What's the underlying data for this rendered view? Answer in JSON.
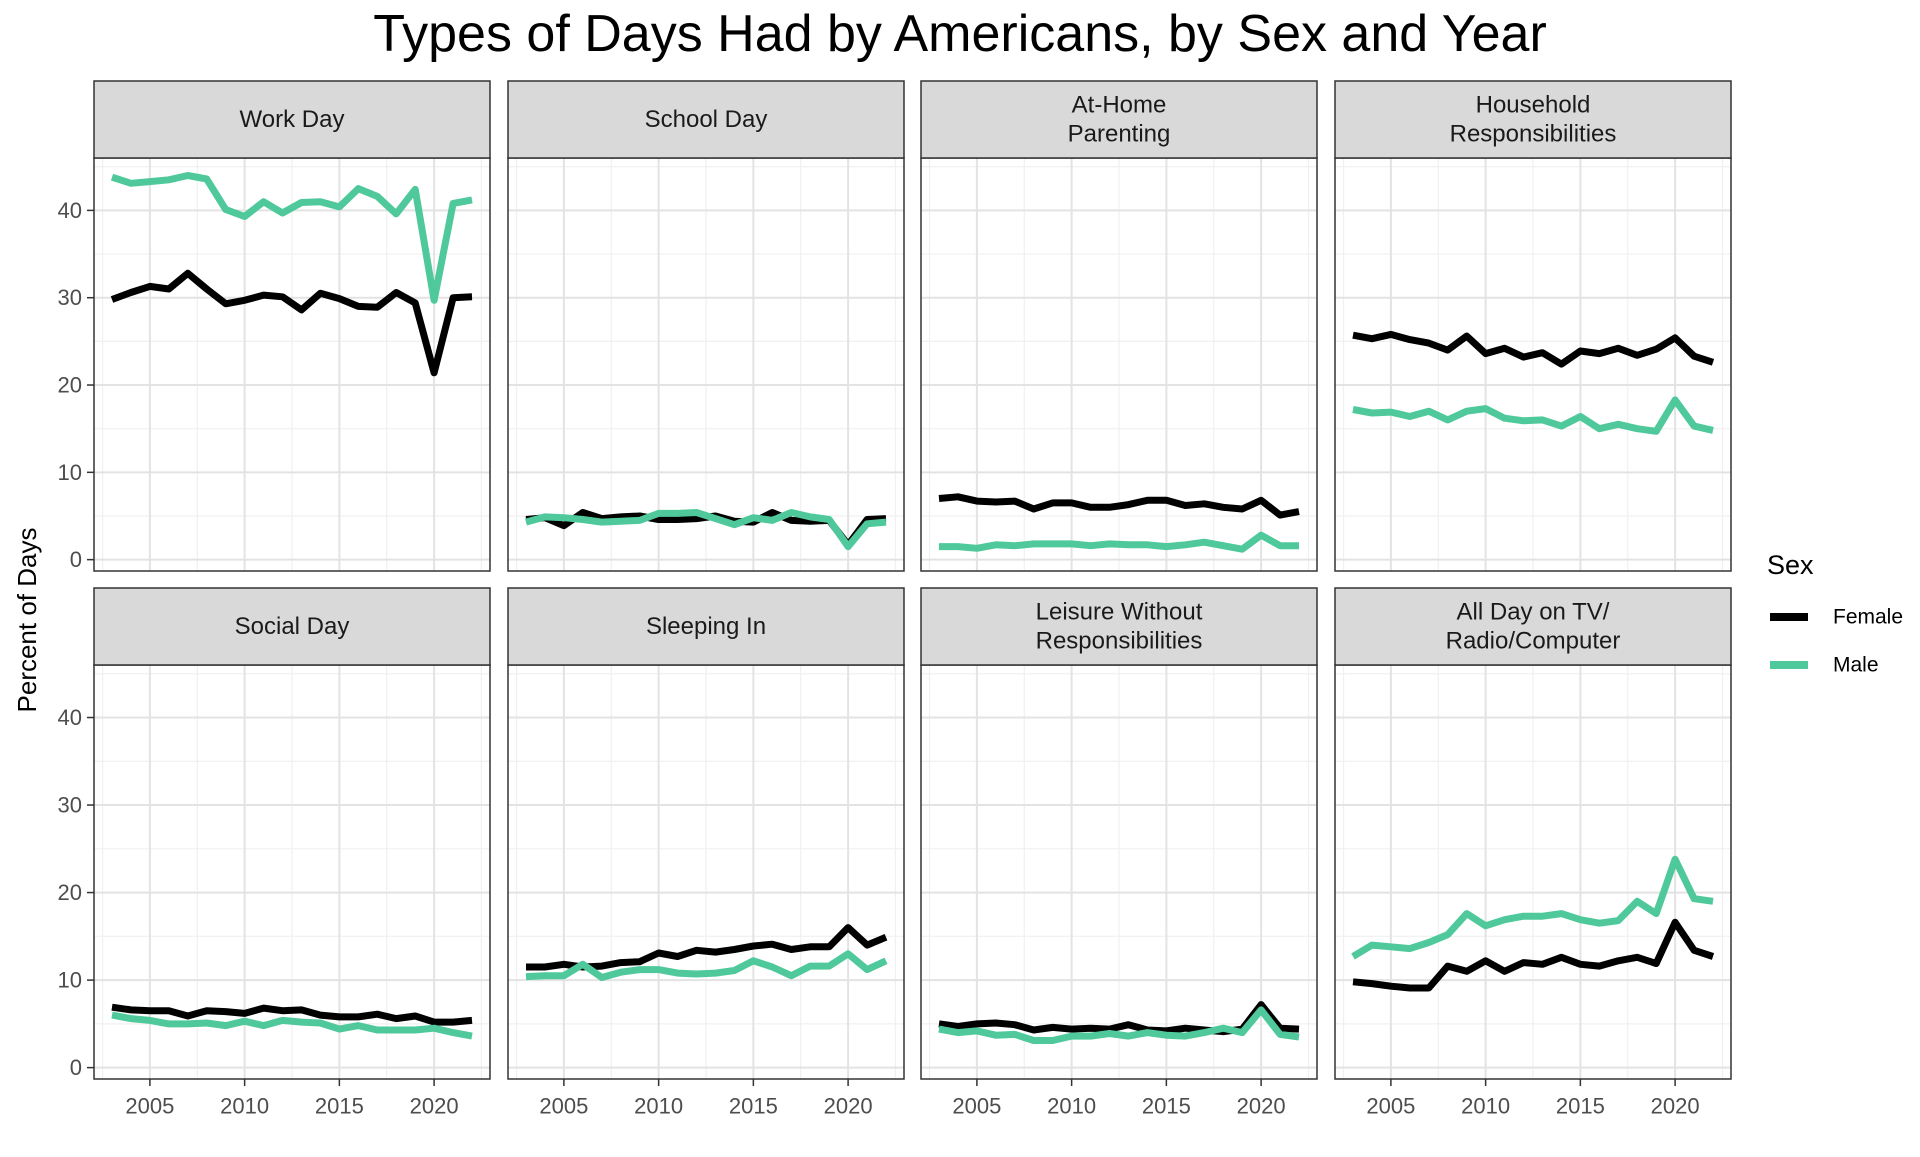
{
  "chart_data": {
    "type": "line",
    "title": "Types of Days Had by Americans, by Sex and Year",
    "ylabel": "Percent of Days",
    "xlabel": "",
    "xlim": [
      2002.05,
      2022.95
    ],
    "ylim": [
      -1.3,
      46.0
    ],
    "x_ticks": [
      2005,
      2010,
      2015,
      2020
    ],
    "x_tick_labels": [
      "2005",
      "2010",
      "2015",
      "2020"
    ],
    "y_ticks": [
      0,
      10,
      20,
      30,
      40
    ],
    "y_tick_labels": [
      "0",
      "10",
      "20",
      "30",
      "40"
    ],
    "grid": true,
    "legend": {
      "title": "Sex",
      "position": "right",
      "items": [
        {
          "name": "Female",
          "color": "#000000"
        },
        {
          "name": "Male",
          "color": "#4fc99c"
        }
      ]
    },
    "x": [
      2003,
      2004,
      2005,
      2006,
      2007,
      2008,
      2009,
      2010,
      2011,
      2012,
      2013,
      2014,
      2015,
      2016,
      2017,
      2018,
      2019,
      2020,
      2021,
      2022
    ],
    "panels": [
      {
        "label_lines": [
          "Work Day"
        ],
        "series": [
          {
            "name": "Female",
            "values": [
              29.8,
              30.6,
              31.3,
              31.0,
              32.8,
              31.0,
              29.3,
              29.7,
              30.3,
              30.1,
              28.6,
              30.5,
              29.9,
              29.0,
              28.9,
              30.6,
              29.4,
              21.4,
              30.0,
              30.1
            ]
          },
          {
            "name": "Male",
            "values": [
              43.8,
              43.1,
              43.3,
              43.5,
              44.0,
              43.6,
              40.1,
              39.3,
              41.0,
              39.7,
              40.9,
              41.0,
              40.4,
              42.5,
              41.6,
              39.6,
              42.4,
              29.7,
              40.8,
              41.2
            ]
          }
        ]
      },
      {
        "label_lines": [
          "School Day"
        ],
        "series": [
          {
            "name": "Female",
            "values": [
              4.6,
              4.8,
              3.9,
              5.4,
              4.7,
              4.9,
              5.0,
              4.6,
              4.6,
              4.7,
              5.0,
              4.4,
              4.3,
              5.4,
              4.5,
              4.4,
              4.5,
              1.7,
              4.6,
              4.7
            ]
          },
          {
            "name": "Male",
            "values": [
              4.3,
              4.9,
              4.8,
              4.6,
              4.3,
              4.4,
              4.5,
              5.3,
              5.3,
              5.4,
              4.7,
              4.0,
              4.8,
              4.5,
              5.4,
              4.9,
              4.6,
              1.5,
              4.1,
              4.3
            ]
          }
        ]
      },
      {
        "label_lines": [
          "At-Home",
          "Parenting"
        ],
        "series": [
          {
            "name": "Female",
            "values": [
              7.0,
              7.2,
              6.7,
              6.6,
              6.7,
              5.8,
              6.5,
              6.5,
              6.0,
              6.0,
              6.3,
              6.8,
              6.8,
              6.2,
              6.4,
              6.0,
              5.8,
              6.8,
              5.1,
              5.5
            ]
          },
          {
            "name": "Male",
            "values": [
              1.5,
              1.5,
              1.3,
              1.7,
              1.6,
              1.8,
              1.8,
              1.8,
              1.6,
              1.8,
              1.7,
              1.7,
              1.5,
              1.7,
              2.0,
              1.6,
              1.2,
              2.8,
              1.6,
              1.6
            ]
          }
        ]
      },
      {
        "label_lines": [
          "Household",
          "Responsibilities"
        ],
        "series": [
          {
            "name": "Female",
            "values": [
              25.7,
              25.3,
              25.8,
              25.2,
              24.8,
              24.0,
              25.6,
              23.6,
              24.2,
              23.2,
              23.7,
              22.4,
              23.9,
              23.6,
              24.2,
              23.4,
              24.1,
              25.4,
              23.3,
              22.6
            ]
          },
          {
            "name": "Male",
            "values": [
              17.2,
              16.8,
              16.9,
              16.4,
              17.0,
              16.0,
              17.0,
              17.3,
              16.2,
              15.9,
              16.0,
              15.3,
              16.4,
              15.0,
              15.5,
              15.0,
              14.7,
              18.3,
              15.3,
              14.8
            ]
          }
        ]
      },
      {
        "label_lines": [
          "Social Day"
        ],
        "series": [
          {
            "name": "Female",
            "values": [
              6.9,
              6.6,
              6.5,
              6.5,
              5.9,
              6.5,
              6.4,
              6.2,
              6.8,
              6.5,
              6.6,
              6.0,
              5.8,
              5.8,
              6.1,
              5.6,
              5.9,
              5.2,
              5.2,
              5.4
            ]
          },
          {
            "name": "Male",
            "values": [
              6.0,
              5.6,
              5.4,
              5.0,
              5.0,
              5.1,
              4.8,
              5.3,
              4.8,
              5.4,
              5.2,
              5.1,
              4.4,
              4.8,
              4.3,
              4.3,
              4.3,
              4.5,
              4.0,
              3.6
            ]
          }
        ]
      },
      {
        "label_lines": [
          "Sleeping In"
        ],
        "series": [
          {
            "name": "Female",
            "values": [
              11.5,
              11.5,
              11.8,
              11.5,
              11.6,
              12.0,
              12.1,
              13.1,
              12.7,
              13.4,
              13.2,
              13.5,
              13.9,
              14.1,
              13.5,
              13.8,
              13.8,
              16.0,
              14.0,
              14.9
            ]
          },
          {
            "name": "Male",
            "values": [
              10.4,
              10.5,
              10.5,
              11.8,
              10.3,
              10.9,
              11.2,
              11.2,
              10.8,
              10.7,
              10.8,
              11.1,
              12.2,
              11.5,
              10.5,
              11.6,
              11.6,
              13.0,
              11.2,
              12.2
            ]
          }
        ]
      },
      {
        "label_lines": [
          "Leisure Without",
          "Responsibilities"
        ],
        "series": [
          {
            "name": "Female",
            "values": [
              5.0,
              4.7,
              5.0,
              5.1,
              4.9,
              4.3,
              4.6,
              4.4,
              4.5,
              4.4,
              4.9,
              4.3,
              4.2,
              4.5,
              4.3,
              4.1,
              4.4,
              7.2,
              4.5,
              4.4
            ]
          },
          {
            "name": "Male",
            "values": [
              4.4,
              4.0,
              4.2,
              3.7,
              3.8,
              3.1,
              3.1,
              3.6,
              3.6,
              3.9,
              3.6,
              4.0,
              3.7,
              3.6,
              4.0,
              4.5,
              4.0,
              6.6,
              3.8,
              3.5
            ]
          }
        ]
      },
      {
        "label_lines": [
          "All Day on TV/",
          "Radio/Computer"
        ],
        "series": [
          {
            "name": "Female",
            "values": [
              9.8,
              9.6,
              9.3,
              9.1,
              9.1,
              11.6,
              11.0,
              12.2,
              11.0,
              12.0,
              11.8,
              12.6,
              11.8,
              11.6,
              12.2,
              12.6,
              11.9,
              16.6,
              13.4,
              12.7
            ]
          },
          {
            "name": "Male",
            "values": [
              12.7,
              14.0,
              13.8,
              13.6,
              14.3,
              15.2,
              17.6,
              16.2,
              16.9,
              17.3,
              17.3,
              17.6,
              16.9,
              16.5,
              16.8,
              19.0,
              17.6,
              23.8,
              19.3,
              19.0
            ]
          }
        ]
      }
    ]
  }
}
